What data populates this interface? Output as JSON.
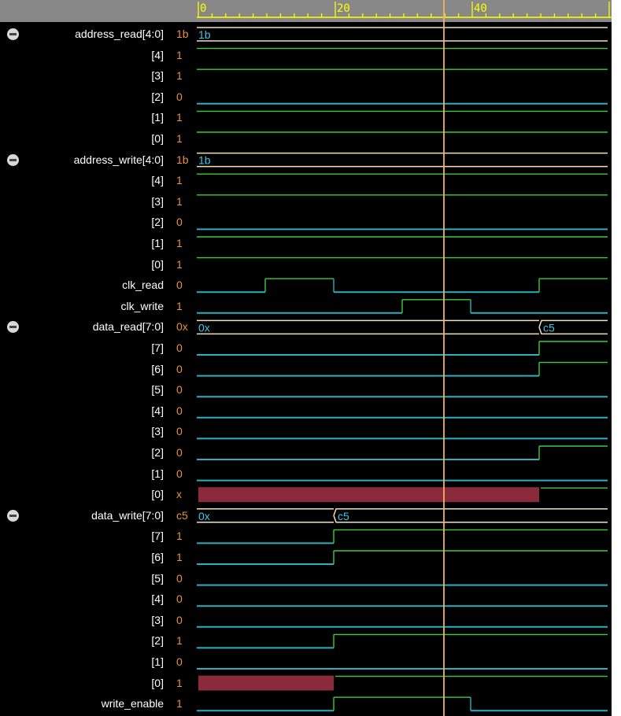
{
  "timeline": {
    "ticks": [
      {
        "label": "0",
        "t": 0
      },
      {
        "label": "20",
        "t": 20
      },
      {
        "label": "40",
        "t": 40
      }
    ],
    "cursor_time": 36,
    "time_end": 60
  },
  "colors": {
    "bit_line": "#2ab0c0",
    "bit_high": "#3ccc3c",
    "bus_line": "#f0e0c0",
    "bus_text": "#3cc8e8",
    "unknown_fill": "#8a2a3a",
    "cursor": "#f4b060",
    "value_text": "#e8903a",
    "ruler_text": "#ffff00"
  },
  "signals": [
    {
      "name": "address_read[4:0]",
      "value": "1b",
      "group": true,
      "type": "bus",
      "segments": [
        {
          "t0": 0,
          "t1": 60,
          "label": "1b"
        }
      ]
    },
    {
      "name": "[4]",
      "value": "1",
      "type": "bit",
      "edges": [
        [
          0,
          1
        ]
      ]
    },
    {
      "name": "[3]",
      "value": "1",
      "type": "bit",
      "edges": [
        [
          0,
          1
        ]
      ]
    },
    {
      "name": "[2]",
      "value": "0",
      "type": "bit",
      "edges": [
        [
          0,
          0
        ]
      ]
    },
    {
      "name": "[1]",
      "value": "1",
      "type": "bit",
      "edges": [
        [
          0,
          1
        ]
      ]
    },
    {
      "name": "[0]",
      "value": "1",
      "type": "bit",
      "edges": [
        [
          0,
          1
        ]
      ]
    },
    {
      "name": "address_write[4:0]",
      "value": "1b",
      "group": true,
      "type": "bus",
      "segments": [
        {
          "t0": 0,
          "t1": 60,
          "label": "1b"
        }
      ]
    },
    {
      "name": "[4]",
      "value": "1",
      "type": "bit",
      "edges": [
        [
          0,
          1
        ]
      ]
    },
    {
      "name": "[3]",
      "value": "1",
      "type": "bit",
      "edges": [
        [
          0,
          1
        ]
      ]
    },
    {
      "name": "[2]",
      "value": "0",
      "type": "bit",
      "edges": [
        [
          0,
          0
        ]
      ]
    },
    {
      "name": "[1]",
      "value": "1",
      "type": "bit",
      "edges": [
        [
          0,
          1
        ]
      ]
    },
    {
      "name": "[0]",
      "value": "1",
      "type": "bit",
      "edges": [
        [
          0,
          1
        ]
      ]
    },
    {
      "name": "clk_read",
      "value": "0",
      "type": "bit",
      "edges": [
        [
          0,
          0
        ],
        [
          10,
          1
        ],
        [
          20,
          0
        ],
        [
          50,
          1
        ]
      ]
    },
    {
      "name": "clk_write",
      "value": "1",
      "type": "bit",
      "edges": [
        [
          0,
          0
        ],
        [
          30,
          1
        ],
        [
          40,
          0
        ]
      ]
    },
    {
      "name": "data_read[7:0]",
      "value": "0x",
      "group": true,
      "type": "bus",
      "segments": [
        {
          "t0": 0,
          "t1": 50,
          "label": "0x"
        },
        {
          "t0": 50,
          "t1": 60,
          "label": "c5"
        }
      ]
    },
    {
      "name": "[7]",
      "value": "0",
      "type": "bit",
      "edges": [
        [
          0,
          0
        ],
        [
          50,
          1
        ]
      ]
    },
    {
      "name": "[6]",
      "value": "0",
      "type": "bit",
      "edges": [
        [
          0,
          0
        ],
        [
          50,
          1
        ]
      ]
    },
    {
      "name": "[5]",
      "value": "0",
      "type": "bit",
      "edges": [
        [
          0,
          0
        ]
      ]
    },
    {
      "name": "[4]",
      "value": "0",
      "type": "bit",
      "edges": [
        [
          0,
          0
        ]
      ]
    },
    {
      "name": "[3]",
      "value": "0",
      "type": "bit",
      "edges": [
        [
          0,
          0
        ]
      ]
    },
    {
      "name": "[2]",
      "value": "0",
      "type": "bit",
      "edges": [
        [
          0,
          0
        ],
        [
          50,
          1
        ]
      ]
    },
    {
      "name": "[1]",
      "value": "0",
      "type": "bit",
      "edges": [
        [
          0,
          0
        ]
      ]
    },
    {
      "name": "[0]",
      "value": "x",
      "type": "bit",
      "edges": [
        [
          0,
          "x"
        ],
        [
          50,
          1
        ]
      ]
    },
    {
      "name": "data_write[7:0]",
      "value": "c5",
      "group": true,
      "type": "bus",
      "segments": [
        {
          "t0": 0,
          "t1": 20,
          "label": "0x"
        },
        {
          "t0": 20,
          "t1": 60,
          "label": "c5"
        }
      ]
    },
    {
      "name": "[7]",
      "value": "1",
      "type": "bit",
      "edges": [
        [
          0,
          0
        ],
        [
          20,
          1
        ]
      ]
    },
    {
      "name": "[6]",
      "value": "1",
      "type": "bit",
      "edges": [
        [
          0,
          0
        ],
        [
          20,
          1
        ]
      ]
    },
    {
      "name": "[5]",
      "value": "0",
      "type": "bit",
      "edges": [
        [
          0,
          0
        ]
      ]
    },
    {
      "name": "[4]",
      "value": "0",
      "type": "bit",
      "edges": [
        [
          0,
          0
        ]
      ]
    },
    {
      "name": "[3]",
      "value": "0",
      "type": "bit",
      "edges": [
        [
          0,
          0
        ]
      ]
    },
    {
      "name": "[2]",
      "value": "1",
      "type": "bit",
      "edges": [
        [
          0,
          0
        ],
        [
          20,
          1
        ]
      ]
    },
    {
      "name": "[1]",
      "value": "0",
      "type": "bit",
      "edges": [
        [
          0,
          0
        ]
      ]
    },
    {
      "name": "[0]",
      "value": "1",
      "type": "bit",
      "edges": [
        [
          0,
          "x"
        ],
        [
          20,
          1
        ]
      ]
    },
    {
      "name": "write_enable",
      "value": "1",
      "type": "bit",
      "edges": [
        [
          0,
          0
        ],
        [
          20,
          1
        ],
        [
          40,
          0
        ]
      ]
    }
  ]
}
